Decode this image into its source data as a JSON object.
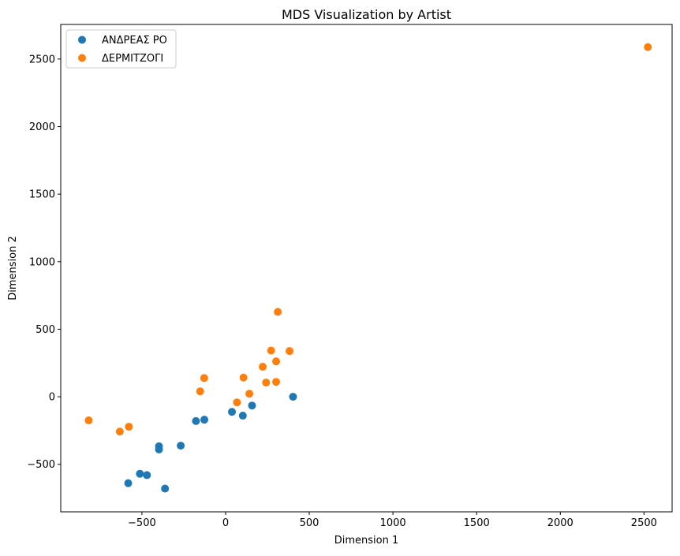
{
  "chart_data": {
    "type": "scatter",
    "title": "MDS Visualization by Artist",
    "xlabel": "Dimension 1",
    "ylabel": "Dimension 2",
    "xlim": [
      -985,
      2668
    ],
    "ylim": [
      -852,
      2756
    ],
    "x_ticks": [
      {
        "value": -500,
        "label": "−500"
      },
      {
        "value": 0,
        "label": "0"
      },
      {
        "value": 500,
        "label": "500"
      },
      {
        "value": 1000,
        "label": "1000"
      },
      {
        "value": 1500,
        "label": "1500"
      },
      {
        "value": 2000,
        "label": "2000"
      },
      {
        "value": 2500,
        "label": "2500"
      }
    ],
    "y_ticks": [
      {
        "value": -500,
        "label": "−500"
      },
      {
        "value": 0,
        "label": "0"
      },
      {
        "value": 500,
        "label": "500"
      },
      {
        "value": 1000,
        "label": "1000"
      },
      {
        "value": 1500,
        "label": "1500"
      },
      {
        "value": 2000,
        "label": "2000"
      },
      {
        "value": 2500,
        "label": "2500"
      }
    ],
    "grid": false,
    "legend_position": "top-left",
    "series": [
      {
        "name": "ΑΝΔΡΕΑΣ ΡΟ",
        "color": "#1f77b4",
        "points": [
          {
            "x": 403,
            "y": 0
          },
          {
            "x": 158,
            "y": -65
          },
          {
            "x": 103,
            "y": -140
          },
          {
            "x": 38,
            "y": -112
          },
          {
            "x": -127,
            "y": -170
          },
          {
            "x": -177,
            "y": -180
          },
          {
            "x": -268,
            "y": -362
          },
          {
            "x": -398,
            "y": -367
          },
          {
            "x": -398,
            "y": -390
          },
          {
            "x": -470,
            "y": -580
          },
          {
            "x": -512,
            "y": -570
          },
          {
            "x": -582,
            "y": -640
          },
          {
            "x": -362,
            "y": -680
          }
        ]
      },
      {
        "name": "ΔΕΡΜΙΤΖΟΓΙ",
        "color": "#ff7f0e",
        "points": [
          {
            "x": 2523,
            "y": 2588
          },
          {
            "x": 312,
            "y": 628
          },
          {
            "x": 272,
            "y": 342
          },
          {
            "x": 382,
            "y": 338
          },
          {
            "x": 302,
            "y": 262
          },
          {
            "x": 222,
            "y": 222
          },
          {
            "x": 107,
            "y": 142
          },
          {
            "x": -128,
            "y": 138
          },
          {
            "x": 242,
            "y": 105
          },
          {
            "x": 302,
            "y": 110
          },
          {
            "x": -152,
            "y": 40
          },
          {
            "x": 142,
            "y": 22
          },
          {
            "x": 68,
            "y": -42
          },
          {
            "x": -818,
            "y": -175
          },
          {
            "x": -578,
            "y": -222
          },
          {
            "x": -632,
            "y": -258
          }
        ]
      }
    ]
  }
}
